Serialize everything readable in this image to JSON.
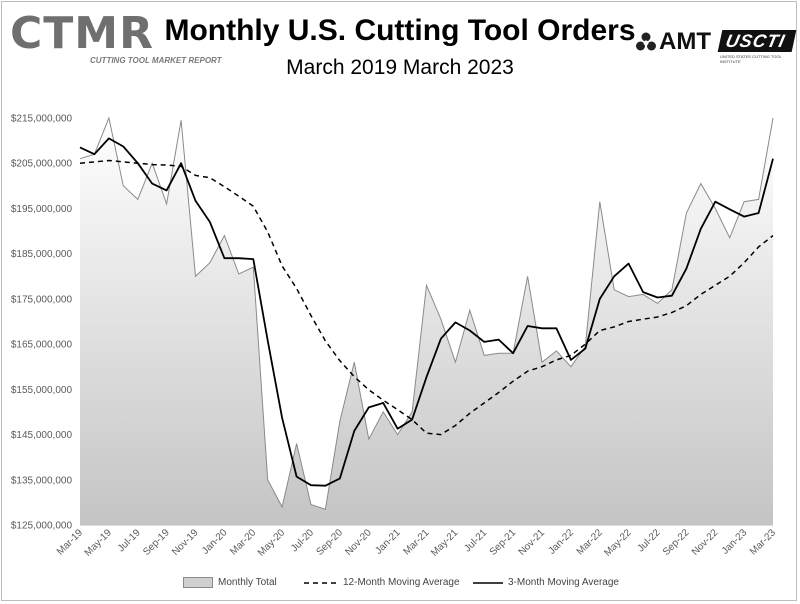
{
  "header": {
    "title": "Monthly U.S. Cutting Tool Orders",
    "subtitle": "March 2019 March 2023"
  },
  "logos": {
    "ctmr": "CTMR",
    "ctmr_tagline": "CUTTING TOOL MARKET REPORT",
    "amt": "AMT",
    "uscti": "USCTI",
    "uscti_tagline": "UNITED STATES CUTTING TOOL INSTITUTE"
  },
  "colors": {
    "area_fill_top": "#ffffff",
    "area_fill_bottom": "#c4c4c4",
    "area_stroke": "#8a8a8a",
    "line": "#000000",
    "grid": "#d9d9d9"
  },
  "chart_data": {
    "type": "area",
    "ylim": [
      125000000,
      215000000
    ],
    "y_ticks": [
      125000000,
      135000000,
      145000000,
      155000000,
      165000000,
      175000000,
      185000000,
      195000000,
      205000000,
      215000000
    ],
    "y_tick_labels": [
      "$125,000,000",
      "$135,000,000",
      "$145,000,000",
      "$155,000,000",
      "$165,000,000",
      "$175,000,000",
      "$185,000,000",
      "$195,000,000",
      "$205,000,000",
      "$215,000,000"
    ],
    "x_tick_labels": [
      "Mar-19",
      "May-19",
      "Jul-19",
      "Sep-19",
      "Nov-19",
      "Jan-20",
      "Mar-20",
      "May-20",
      "Jul-20",
      "Sep-20",
      "Nov-20",
      "Jan-21",
      "Mar-21",
      "May-21",
      "Jul-21",
      "Sep-21",
      "Nov-21",
      "Jan-22",
      "Mar-22",
      "May-22",
      "Jul-22",
      "Sep-22",
      "Nov-22",
      "Jan-23",
      "Mar-23"
    ],
    "x": [
      "Mar-19",
      "Apr-19",
      "May-19",
      "Jun-19",
      "Jul-19",
      "Aug-19",
      "Sep-19",
      "Oct-19",
      "Nov-19",
      "Dec-19",
      "Jan-20",
      "Feb-20",
      "Mar-20",
      "Apr-20",
      "May-20",
      "Jun-20",
      "Jul-20",
      "Aug-20",
      "Sep-20",
      "Oct-20",
      "Nov-20",
      "Dec-20",
      "Jan-21",
      "Feb-21",
      "Mar-21",
      "Apr-21",
      "May-21",
      "Jun-21",
      "Jul-21",
      "Aug-21",
      "Sep-21",
      "Oct-21",
      "Nov-21",
      "Dec-21",
      "Jan-22",
      "Feb-22",
      "Mar-22",
      "Apr-22",
      "May-22",
      "Jun-22",
      "Jul-22",
      "Aug-22",
      "Sep-22",
      "Oct-22",
      "Nov-22",
      "Dec-22",
      "Jan-23",
      "Feb-23",
      "Mar-23"
    ],
    "series": [
      {
        "name": "Monthly Total",
        "style": "area",
        "values": [
          206000000,
          207000000,
          218000000,
          200000000,
          197000000,
          205000000,
          196000000,
          214500000,
          180000000,
          183000000,
          189000000,
          180500000,
          182000000,
          135000000,
          129000000,
          143000000,
          129500000,
          128500000,
          148000000,
          161000000,
          144000000,
          150000000,
          145000000,
          150000000,
          178000000,
          170500000,
          161000000,
          172500000,
          162500000,
          163000000,
          163000000,
          180000000,
          161000000,
          163500000,
          160000000,
          164500000,
          196500000,
          177000000,
          175500000,
          176000000,
          174000000,
          177000000,
          194000000,
          200500000,
          195000000,
          188500000,
          196500000,
          197000000,
          221000000
        ]
      },
      {
        "name": "12-Month Moving Average",
        "style": "dashed",
        "values": [
          205000000,
          205300000,
          205600000,
          205300000,
          205000000,
          204700000,
          204600000,
          204300000,
          202300000,
          201800000,
          199800000,
          197700000,
          195500000,
          189800000,
          182300000,
          177300000,
          171300000,
          165700000,
          161300000,
          157800000,
          154900000,
          152600000,
          150500000,
          148300000,
          145300000,
          145000000,
          147000000,
          149700000,
          152000000,
          154300000,
          156800000,
          159000000,
          160000000,
          161500000,
          162500000,
          165000000,
          168000000,
          168800000,
          170000000,
          170500000,
          171000000,
          172000000,
          173500000,
          176000000,
          178000000,
          180000000,
          183000000,
          186500000,
          189000000
        ]
      },
      {
        "name": "3-Month Moving Average",
        "style": "solid",
        "values": [
          208500000,
          207000000,
          210500000,
          208700000,
          205000000,
          200500000,
          199000000,
          205000000,
          196700000,
          192000000,
          184000000,
          184000000,
          183800000,
          165800000,
          148700000,
          135700000,
          133800000,
          133700000,
          135300000,
          145800000,
          151000000,
          152000000,
          146300000,
          148300000,
          157700000,
          166200000,
          169800000,
          168000000,
          165500000,
          166000000,
          163000000,
          169000000,
          168500000,
          168500000,
          161500000,
          164000000,
          175000000,
          180000000,
          182800000,
          176500000,
          175300000,
          175700000,
          181700000,
          190500000,
          196500000,
          194800000,
          193200000,
          194000000,
          206000000
        ]
      }
    ],
    "legend": [
      "Monthly Total",
      "12-Month Moving Average",
      "3-Month Moving Average"
    ],
    "legend_position": "bottom",
    "grid": false
  }
}
